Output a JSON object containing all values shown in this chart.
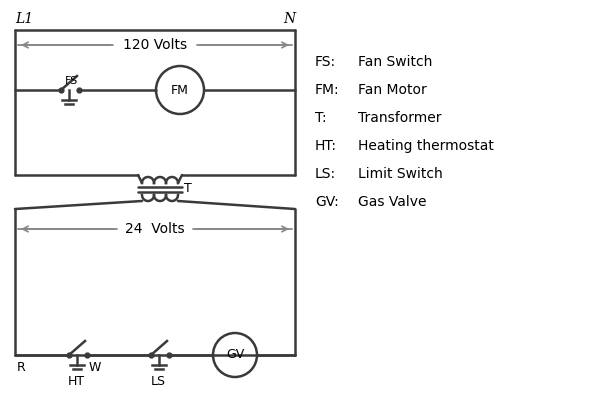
{
  "bg_color": "#ffffff",
  "line_color": "#3a3a3a",
  "arrow_color": "#888888",
  "text_color": "#000000",
  "legend": [
    [
      "FS:",
      "Fan Switch"
    ],
    [
      "FM:",
      "Fan Motor"
    ],
    [
      "T:",
      "Transformer"
    ],
    [
      "HT:",
      "Heating thermostat"
    ],
    [
      "LS:",
      "Limit Switch"
    ],
    [
      "GV:",
      "Gas Valve"
    ]
  ],
  "L1_label": "L1",
  "N_label": "N",
  "volts120_label": "120 Volts",
  "volts24_label": "24  Volts",
  "T_label": "T",
  "R_label": "R",
  "W_label": "W",
  "HT_label": "HT",
  "LS_label": "LS",
  "FS_label": "FS",
  "FM_label": "FM",
  "GV_label": "GV"
}
